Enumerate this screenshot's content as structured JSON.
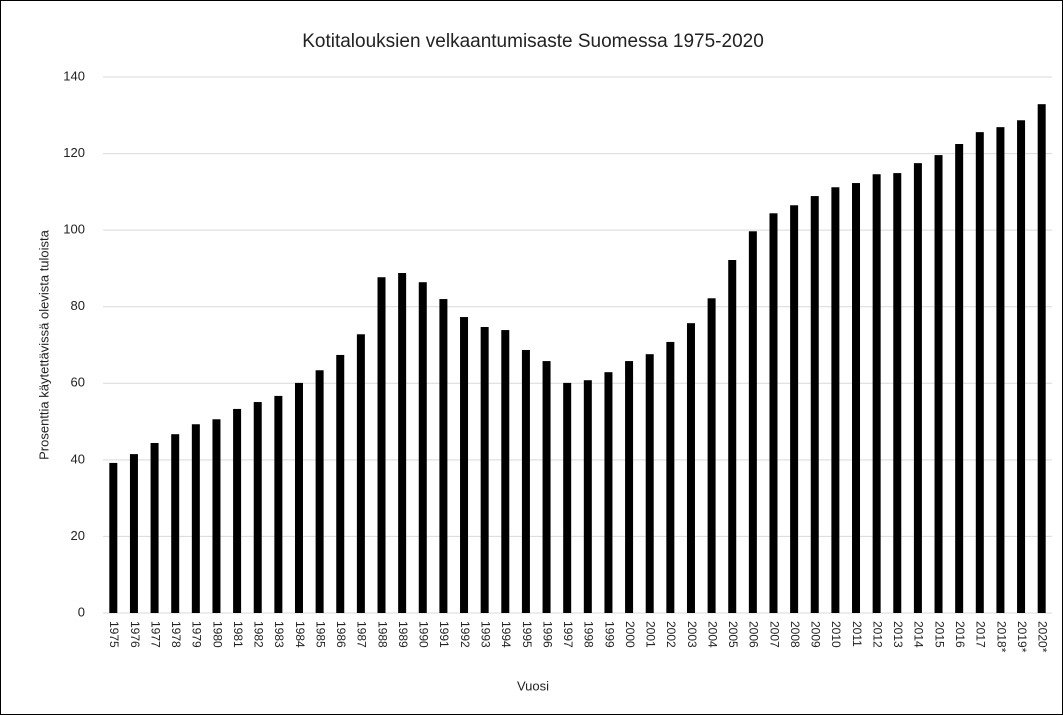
{
  "chart_data": {
    "type": "bar",
    "title": "Kotitalouksien velkaantumisaste Suomessa 1975-2020",
    "x_label": "Vuosi",
    "y_label": "Prosenttia käytettävissä olevista tuloista",
    "categories": [
      "1975",
      "1976",
      "1977",
      "1978",
      "1979",
      "1980",
      "1981",
      "1982",
      "1983",
      "1984",
      "1985",
      "1986",
      "1987",
      "1988",
      "1989",
      "1990",
      "1991",
      "1992",
      "1993",
      "1994",
      "1995",
      "1996",
      "1997",
      "1998",
      "1999",
      "2000",
      "2001",
      "2002",
      "2003",
      "2004",
      "2005",
      "2006",
      "2007",
      "2008",
      "2009",
      "2010",
      "2011",
      "2012",
      "2013",
      "2014",
      "2015",
      "2016",
      "2017",
      "2018*",
      "2019*",
      "2020*"
    ],
    "values": [
      39.2,
      41.5,
      44.4,
      46.7,
      49.3,
      50.6,
      53.3,
      55.1,
      56.7,
      60.1,
      63.4,
      67.4,
      72.8,
      87.7,
      88.8,
      86.4,
      82.0,
      77.3,
      74.7,
      73.9,
      68.7,
      65.8,
      60.1,
      60.8,
      62.9,
      65.8,
      67.6,
      70.8,
      75.7,
      82.2,
      92.2,
      99.7,
      104.4,
      106.5,
      108.9,
      111.2,
      112.3,
      114.6,
      114.9,
      117.5,
      119.6,
      122.5,
      125.6,
      126.9,
      128.7,
      132.9
    ],
    "color": "#000000",
    "ylim": [
      0,
      140
    ],
    "yticks": [
      0,
      20,
      40,
      60,
      80,
      100,
      120,
      140
    ],
    "grid": true
  }
}
